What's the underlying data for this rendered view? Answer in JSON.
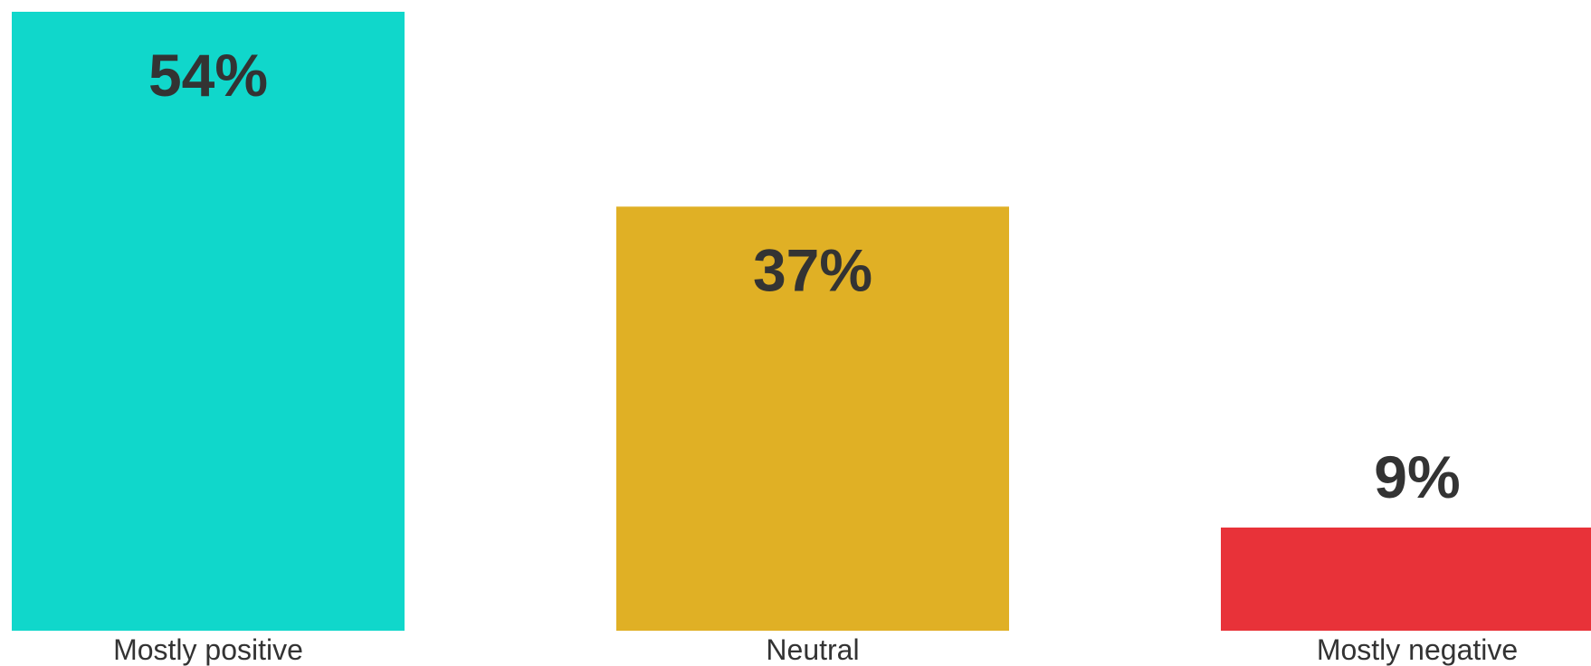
{
  "chart_data": {
    "type": "bar",
    "categories": [
      "Mostly positive",
      "Neutral",
      "Mostly negative"
    ],
    "values": [
      54,
      37,
      9
    ],
    "value_labels": [
      "54%",
      "37%",
      "9%"
    ],
    "colors": [
      "#10d7cb",
      "#e0b025",
      "#e83239"
    ],
    "label_color": "#333333",
    "ylim": [
      0,
      54
    ],
    "grid": false,
    "legend": "none"
  }
}
